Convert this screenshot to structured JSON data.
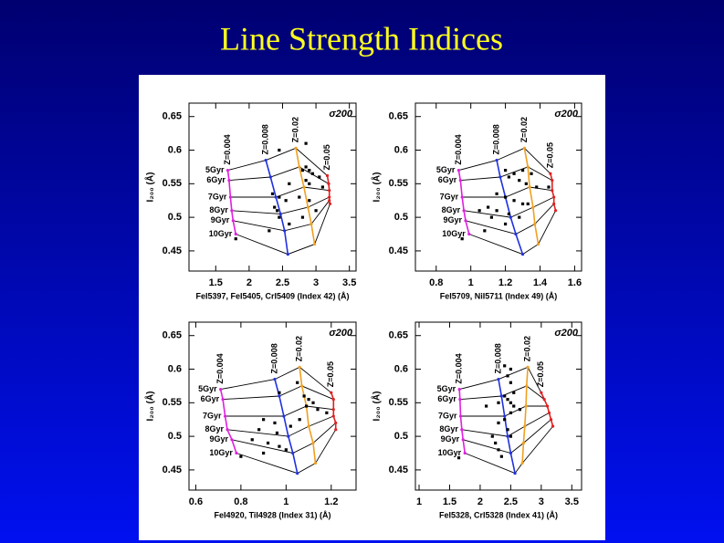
{
  "slide_title": "Line Strength Indices",
  "chart_data": [
    {
      "type": "line",
      "xlabel": "FeI5397, FeI5405, CrI5409 (Index 42) (Å)",
      "ylabel": "I₂₀₀ (Å)",
      "annotation": "σ200",
      "xlim": [
        1.1,
        3.6
      ],
      "xticks": [
        1.5,
        2,
        2.5,
        3,
        3.5
      ],
      "ylim": [
        0.42,
        0.67
      ],
      "yticks": [
        0.45,
        0.5,
        0.55,
        0.6,
        0.65
      ],
      "ages": [
        "5Gyr",
        "6Gyr",
        "7Gyr",
        "8Gyr",
        "9Gyr",
        "10Gyr"
      ],
      "series": [
        {
          "name": "Z=0.004",
          "color": "#e020e0",
          "x": [
            1.68,
            1.7,
            1.72,
            1.74,
            1.76,
            1.8
          ],
          "values": [
            0.57,
            0.555,
            0.53,
            0.51,
            0.495,
            0.475
          ]
        },
        {
          "name": "Z=0.008",
          "color": "#2030e0",
          "x": [
            2.25,
            2.32,
            2.4,
            2.47,
            2.53,
            2.58
          ],
          "values": [
            0.585,
            0.56,
            0.53,
            0.505,
            0.48,
            0.445
          ]
        },
        {
          "name": "Z=0.02",
          "color": "#f0a020",
          "x": [
            2.7,
            2.75,
            2.82,
            2.88,
            2.93,
            2.98
          ],
          "values": [
            0.603,
            0.575,
            0.545,
            0.515,
            0.49,
            0.46
          ]
        },
        {
          "name": "Z=0.05",
          "color": "#e02020",
          "x": [
            3.17,
            3.19,
            3.2,
            3.2,
            3.2,
            3.21
          ],
          "values": [
            0.562,
            0.55,
            0.54,
            0.53,
            0.525,
            0.52
          ]
        }
      ],
      "points": {
        "x": [
          2.45,
          2.85,
          2.8,
          2.85,
          2.9,
          2.95,
          3.05,
          2.85,
          2.9,
          3.1,
          2.6,
          2.35,
          2.45,
          2.55,
          2.75,
          2.9,
          2.38,
          2.42,
          2.45,
          2.3,
          2.6,
          2.8,
          3.0,
          1.8
        ],
        "values": [
          0.6,
          0.61,
          0.57,
          0.575,
          0.57,
          0.565,
          0.56,
          0.555,
          0.55,
          0.545,
          0.55,
          0.535,
          0.53,
          0.525,
          0.53,
          0.525,
          0.515,
          0.51,
          0.5,
          0.48,
          0.49,
          0.5,
          0.51,
          0.468
        ]
      }
    },
    {
      "type": "line",
      "xlabel": "FeI5709, NiI5711 (Index 49) (Å)",
      "ylabel": "I₂₀₀ (Å)",
      "annotation": "σ200",
      "xlim": [
        0.68,
        1.64
      ],
      "xticks": [
        0.8,
        1,
        1.2,
        1.4,
        1.6
      ],
      "ylim": [
        0.42,
        0.67
      ],
      "yticks": [
        0.45,
        0.5,
        0.55,
        0.6,
        0.65
      ],
      "ages": [
        "5Gyr",
        "6Gyr",
        "7Gyr",
        "8Gyr",
        "9Gyr",
        "10Gyr"
      ],
      "series": [
        {
          "name": "Z=0.004",
          "color": "#e020e0",
          "x": [
            0.93,
            0.94,
            0.95,
            0.96,
            0.97,
            0.99
          ],
          "values": [
            0.57,
            0.555,
            0.53,
            0.51,
            0.495,
            0.475
          ]
        },
        {
          "name": "Z=0.008",
          "color": "#2030e0",
          "x": [
            1.15,
            1.17,
            1.2,
            1.23,
            1.26,
            1.3
          ],
          "values": [
            0.585,
            0.56,
            0.53,
            0.5,
            0.475,
            0.445
          ]
        },
        {
          "name": "Z=0.02",
          "color": "#f0a020",
          "x": [
            1.31,
            1.33,
            1.34,
            1.36,
            1.37,
            1.39
          ],
          "values": [
            0.603,
            0.575,
            0.545,
            0.515,
            0.49,
            0.46
          ]
        },
        {
          "name": "Z=0.05",
          "color": "#e02020",
          "x": [
            1.46,
            1.47,
            1.47,
            1.48,
            1.48,
            1.49
          ],
          "values": [
            0.565,
            0.555,
            0.54,
            0.53,
            0.52,
            0.51
          ]
        }
      ],
      "points": {
        "x": [
          1.2,
          1.22,
          1.25,
          1.3,
          1.35,
          1.28,
          1.32,
          1.38,
          1.15,
          1.2,
          1.25,
          1.3,
          1.1,
          1.15,
          1.22,
          1.05,
          1.12,
          1.2,
          1.08,
          1.28,
          1.33,
          1.45,
          0.95
        ],
        "values": [
          0.57,
          0.56,
          0.565,
          0.57,
          0.565,
          0.555,
          0.55,
          0.545,
          0.535,
          0.53,
          0.525,
          0.52,
          0.515,
          0.51,
          0.505,
          0.51,
          0.5,
          0.49,
          0.48,
          0.5,
          0.52,
          0.545,
          0.468
        ]
      }
    },
    {
      "type": "line",
      "xlabel": "FeI4920, TiI4928 (Index 31) (Å)",
      "ylabel": "I₂₀₀ (Å)",
      "annotation": "σ200",
      "xlim": [
        0.57,
        1.31
      ],
      "xticks": [
        0.6,
        0.8,
        1,
        1.2
      ],
      "ylim": [
        0.42,
        0.67
      ],
      "yticks": [
        0.45,
        0.5,
        0.55,
        0.6,
        0.65
      ],
      "ages": [
        "5Gyr",
        "6Gyr",
        "7Gyr",
        "8Gyr",
        "9Gyr",
        "10Gyr"
      ],
      "series": [
        {
          "name": "Z=0.004",
          "color": "#e020e0",
          "x": [
            0.71,
            0.72,
            0.73,
            0.74,
            0.76,
            0.78
          ],
          "values": [
            0.57,
            0.555,
            0.53,
            0.51,
            0.495,
            0.475
          ]
        },
        {
          "name": "Z=0.008",
          "color": "#2030e0",
          "x": [
            0.95,
            0.97,
            0.99,
            1.01,
            1.03,
            1.05
          ],
          "values": [
            0.585,
            0.56,
            0.53,
            0.5,
            0.475,
            0.445
          ]
        },
        {
          "name": "Z=0.02",
          "color": "#f0a020",
          "x": [
            1.06,
            1.07,
            1.09,
            1.1,
            1.12,
            1.13
          ],
          "values": [
            0.603,
            0.575,
            0.545,
            0.515,
            0.49,
            0.46
          ]
        },
        {
          "name": "Z=0.05",
          "color": "#e02020",
          "x": [
            1.2,
            1.21,
            1.21,
            1.21,
            1.22,
            1.22
          ],
          "values": [
            0.565,
            0.555,
            0.54,
            0.53,
            0.52,
            0.51
          ]
        }
      ],
      "points": {
        "x": [
          0.97,
          1.05,
          1.08,
          1.1,
          1.12,
          1.09,
          1.14,
          0.9,
          0.95,
          0.88,
          0.96,
          1.02,
          1.06,
          0.85,
          0.92,
          0.97,
          0.9,
          1.0,
          0.8,
          1.18
        ],
        "values": [
          0.565,
          0.58,
          0.56,
          0.555,
          0.55,
          0.545,
          0.54,
          0.525,
          0.52,
          0.51,
          0.505,
          0.515,
          0.525,
          0.495,
          0.49,
          0.485,
          0.475,
          0.48,
          0.47,
          0.535
        ]
      }
    },
    {
      "type": "line",
      "xlabel": "FeI5328, CrI5328 (Index 41) (Å)",
      "ylabel": "I₂₀₀ (Å)",
      "annotation": "σ200",
      "xlim": [
        0.94,
        3.66
      ],
      "xticks": [
        1,
        1.5,
        2,
        2.5,
        3,
        3.5
      ],
      "ylim": [
        0.42,
        0.67
      ],
      "yticks": [
        0.45,
        0.5,
        0.55,
        0.6,
        0.65
      ],
      "ages": [
        "5Gyr",
        "6Gyr",
        "7Gyr",
        "8Gyr",
        "9Gyr",
        "10Gyr"
      ],
      "series": [
        {
          "name": "Z=0.004",
          "color": "#e020e0",
          "x": [
            1.66,
            1.67,
            1.68,
            1.7,
            1.72,
            1.75
          ],
          "values": [
            0.57,
            0.555,
            0.53,
            0.51,
            0.495,
            0.475
          ]
        },
        {
          "name": "Z=0.008",
          "color": "#2030e0",
          "x": [
            2.3,
            2.35,
            2.4,
            2.45,
            2.5,
            2.57
          ],
          "values": [
            0.585,
            0.56,
            0.53,
            0.5,
            0.475,
            0.445
          ]
        },
        {
          "name": "Z=0.02",
          "color": "#f0a020",
          "x": [
            2.78,
            2.76,
            2.75,
            2.73,
            2.71,
            2.69
          ],
          "values": [
            0.603,
            0.575,
            0.545,
            0.515,
            0.49,
            0.46
          ]
        },
        {
          "name": "Z=0.05",
          "color": "#e02020",
          "x": [
            3.0,
            3.05,
            3.1,
            3.13,
            3.16,
            3.19
          ],
          "values": [
            0.565,
            0.555,
            0.545,
            0.535,
            0.525,
            0.515
          ]
        }
      ],
      "points": {
        "x": [
          2.4,
          2.5,
          2.45,
          2.5,
          2.55,
          2.4,
          2.45,
          2.5,
          2.55,
          2.3,
          2.5,
          2.4,
          2.3,
          2.45,
          2.2,
          2.25,
          2.5,
          2.3,
          2.35,
          1.65,
          2.1,
          2.65
        ],
        "values": [
          0.605,
          0.6,
          0.59,
          0.58,
          0.565,
          0.56,
          0.555,
          0.55,
          0.545,
          0.55,
          0.535,
          0.525,
          0.52,
          0.51,
          0.5,
          0.49,
          0.5,
          0.48,
          0.47,
          0.468,
          0.545,
          0.54
        ]
      }
    }
  ]
}
